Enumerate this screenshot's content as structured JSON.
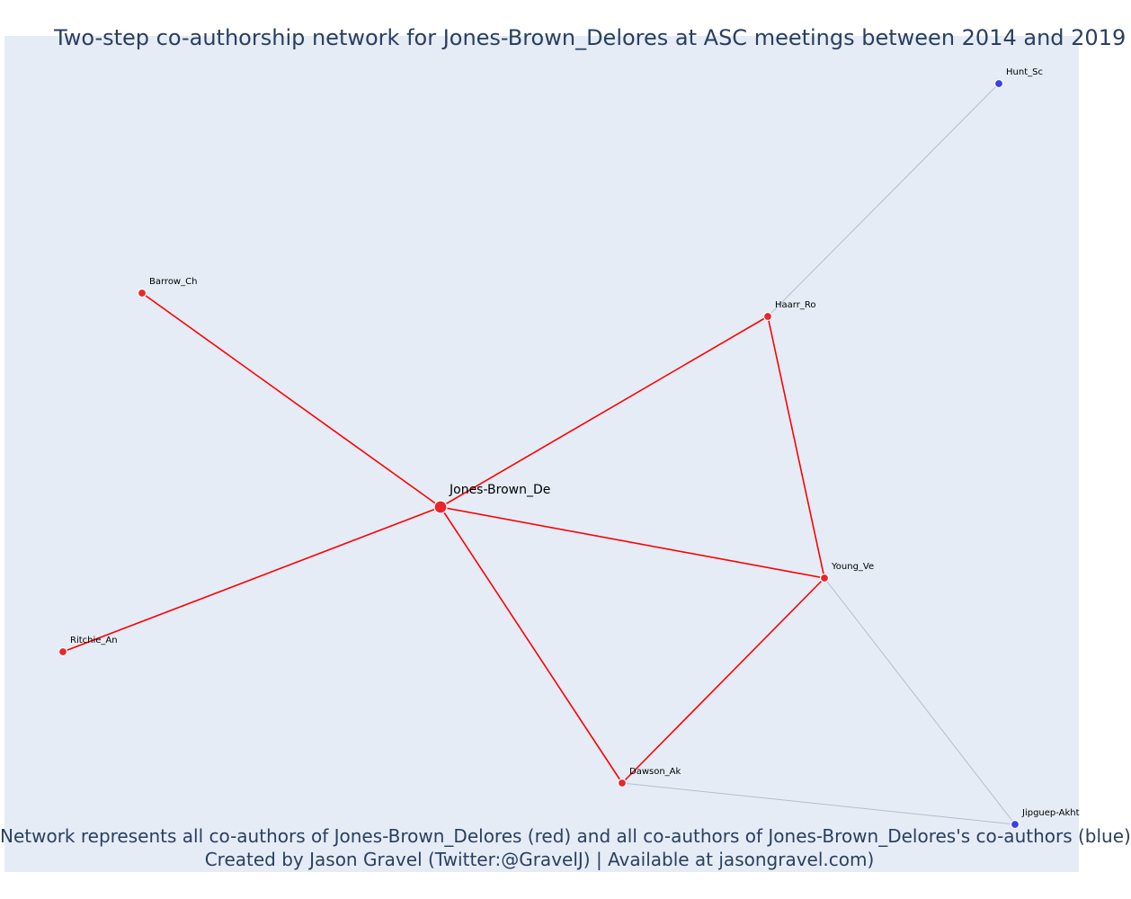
{
  "title": "Two-step co-authorship network for Jones-Brown_Delores at ASC meetings between 2014 and 2019",
  "caption": {
    "line1": "Network represents all co-authors of Jones-Brown_Delores (red) and all co-authors of Jones-Brown_Delores's co-authors (blue)",
    "line2": "Created by Jason Gravel (Twitter:@GravelJ) | Available at jasongravel.com)"
  },
  "colors": {
    "background": "#e5ecf6",
    "text": "#2a3f5f",
    "direct": "#e8262b",
    "direct_edge": "#ff0000",
    "indirect": "#3a3ef0",
    "indirect_edge": "#b8bccc"
  },
  "network": {
    "nodes": [
      {
        "id": "Jones-Brown_De",
        "group": "focal"
      },
      {
        "id": "Barrow_Ch",
        "group": "direct"
      },
      {
        "id": "Haarr_Ro",
        "group": "direct"
      },
      {
        "id": "Young_Ve",
        "group": "direct"
      },
      {
        "id": "Dawson_Ak",
        "group": "direct"
      },
      {
        "id": "Ritchie_An",
        "group": "direct"
      },
      {
        "id": "Hunt_Sc",
        "group": "indirect"
      },
      {
        "id": "Jipguep-Akht",
        "group": "indirect"
      }
    ],
    "edges": [
      {
        "source": "Jones-Brown_De",
        "target": "Barrow_Ch",
        "type": "direct"
      },
      {
        "source": "Jones-Brown_De",
        "target": "Haarr_Ro",
        "type": "direct"
      },
      {
        "source": "Jones-Brown_De",
        "target": "Young_Ve",
        "type": "direct"
      },
      {
        "source": "Jones-Brown_De",
        "target": "Ritchie_An",
        "type": "direct"
      },
      {
        "source": "Jones-Brown_De",
        "target": "Dawson_Ak",
        "type": "direct"
      },
      {
        "source": "Haarr_Ro",
        "target": "Young_Ve",
        "type": "direct"
      },
      {
        "source": "Young_Ve",
        "target": "Dawson_Ak",
        "type": "direct"
      },
      {
        "source": "Haarr_Ro",
        "target": "Hunt_Sc",
        "type": "indirect"
      },
      {
        "source": "Young_Ve",
        "target": "Jipguep-Akht",
        "type": "indirect"
      },
      {
        "source": "Dawson_Ak",
        "target": "Jipguep-Akht",
        "type": "indirect"
      }
    ]
  }
}
